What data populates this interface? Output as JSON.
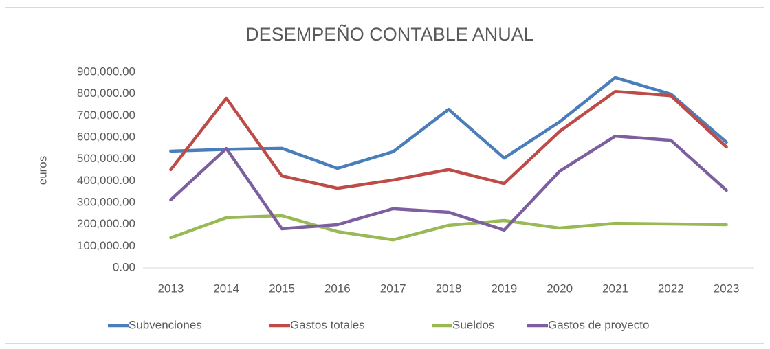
{
  "chart_data": {
    "type": "line",
    "title": "DESEMPEÑO CONTABLE ANUAL",
    "y_label": "euros",
    "categories": [
      "2013",
      "2014",
      "2015",
      "2016",
      "2017",
      "2018",
      "2019",
      "2020",
      "2021",
      "2022",
      "2023"
    ],
    "series": [
      {
        "name": "Subvenciones",
        "color": "#4a7ebb",
        "values": [
          537000,
          545000,
          550000,
          458000,
          534000,
          729000,
          505000,
          672000,
          875000,
          799000,
          578000
        ]
      },
      {
        "name": "Gastos totales",
        "color": "#be4b48",
        "values": [
          452000,
          780000,
          423000,
          366000,
          404000,
          452000,
          388000,
          628000,
          811000,
          792000,
          556000
        ]
      },
      {
        "name": "Sueldos",
        "color": "#98b954",
        "values": [
          139000,
          231000,
          240000,
          167000,
          129000,
          196000,
          218000,
          183000,
          205000,
          202000,
          199000
        ]
      },
      {
        "name": "Gastos de proyecto",
        "color": "#7d5fa0",
        "values": [
          313000,
          549000,
          180000,
          199000,
          272000,
          256000,
          174000,
          445000,
          606000,
          587000,
          357000
        ]
      }
    ],
    "ylim": [
      0,
      900000
    ],
    "yticks": [
      {
        "value": 0,
        "label": "0.00"
      },
      {
        "value": 100000,
        "label": "100,000.00"
      },
      {
        "value": 200000,
        "label": "200,000.00"
      },
      {
        "value": 300000,
        "label": "300,000.00"
      },
      {
        "value": 400000,
        "label": "400,000.00"
      },
      {
        "value": 500000,
        "label": "500,000.00"
      },
      {
        "value": 600000,
        "label": "600,000.00"
      },
      {
        "value": 700000,
        "label": "700,000.00"
      },
      {
        "value": 800000,
        "label": "800,000.00"
      },
      {
        "value": 900000,
        "label": "900,000.00"
      }
    ],
    "grid": false,
    "legend": "bottom"
  }
}
